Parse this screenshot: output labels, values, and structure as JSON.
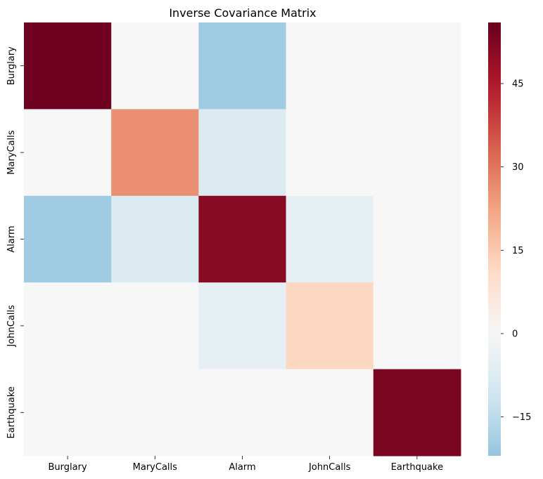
{
  "chart_data": {
    "type": "heatmap",
    "title": "Inverse Covariance Matrix",
    "xlabel": "",
    "ylabel": "",
    "x_categories": [
      "Burglary",
      "MaryCalls",
      "Alarm",
      "JohnCalls",
      "Earthquake"
    ],
    "y_categories": [
      "Burglary",
      "MaryCalls",
      "Alarm",
      "JohnCalls",
      "Earthquake"
    ],
    "values": [
      [
        55,
        0,
        -20,
        0,
        0
      ],
      [
        0,
        26,
        -8,
        0,
        0
      ],
      [
        -20,
        -8,
        51,
        -5,
        0
      ],
      [
        0,
        0,
        -5,
        12,
        0
      ],
      [
        0,
        0,
        0,
        0,
        53
      ]
    ],
    "colormap": "RdBu_r",
    "center": 0,
    "vmin": -22,
    "vmax": 56,
    "colorbar_ticks": [
      45,
      30,
      15,
      0,
      -15
    ],
    "grid": false,
    "legend": "colorbar-right"
  }
}
